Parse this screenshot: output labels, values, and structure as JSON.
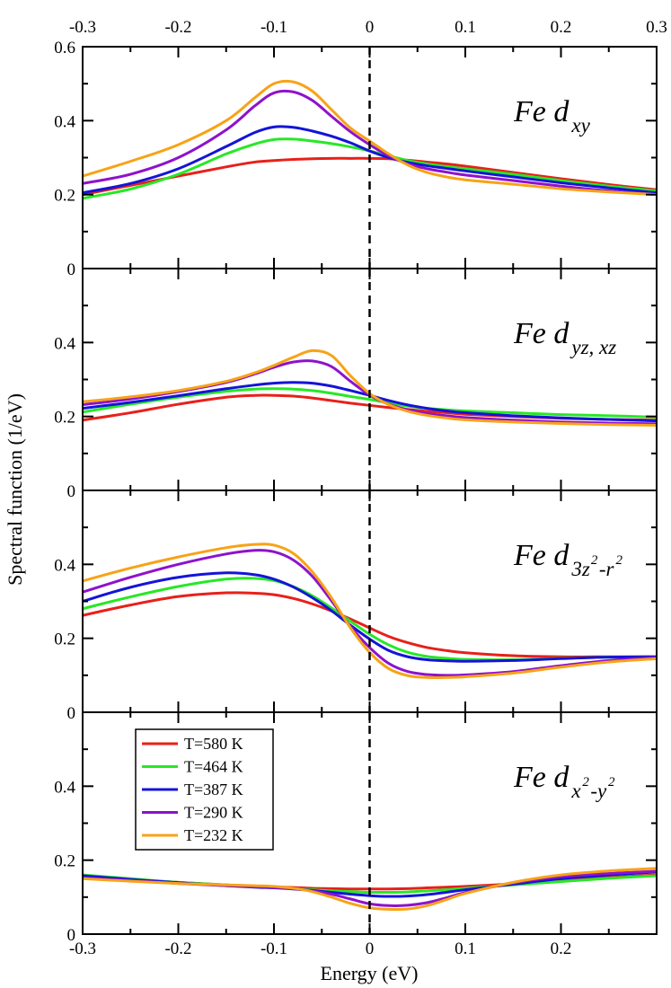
{
  "chart_data": {
    "type": "line",
    "xlabel": "Energy (eV)",
    "ylabel": "Spectral function (1/eV)",
    "xlim": [
      -0.3,
      0.3
    ],
    "ylim": [
      0,
      0.6
    ],
    "x_ticks": [
      "-0.3",
      "-0.2",
      "-0.1",
      "0",
      "0.1",
      "0.2",
      "0.3"
    ],
    "x_ticks_bottom": [
      "-0.3",
      "-0.2",
      "-0.1",
      "0",
      "0.1",
      "0.2"
    ],
    "y_ticks_top_panel": [
      "0",
      "0.2",
      "0.4",
      "0.6"
    ],
    "y_ticks": [
      "0",
      "0.2",
      "0.4"
    ],
    "fermi_level_line": 0,
    "legend": {
      "position": "lower-left of bottom panel",
      "entries": [
        {
          "label": "T=580 K",
          "color": "#e8201a"
        },
        {
          "label": "T=464 K",
          "color": "#26e826"
        },
        {
          "label": "T=387 K",
          "color": "#1414d8"
        },
        {
          "label": "T=290 K",
          "color": "#8e12cc"
        },
        {
          "label": "T=232 K",
          "color": "#f7a316"
        }
      ]
    },
    "x": [
      -0.3,
      -0.25,
      -0.2,
      -0.15,
      -0.12,
      -0.1,
      -0.08,
      -0.06,
      -0.04,
      -0.02,
      0,
      0.02,
      0.04,
      0.06,
      0.08,
      0.1,
      0.15,
      0.2,
      0.25,
      0.3
    ],
    "panels": [
      {
        "label": "Fe d",
        "sub": "xy",
        "series": [
          {
            "name": "T=580 K",
            "values": [
              0.2,
              0.225,
              0.25,
              0.275,
              0.288,
              0.292,
              0.295,
              0.297,
              0.298,
              0.298,
              0.298,
              0.297,
              0.293,
              0.288,
              0.283,
              0.277,
              0.26,
              0.243,
              0.227,
              0.213
            ]
          },
          {
            "name": "T=464 K",
            "values": [
              0.19,
              0.215,
              0.255,
              0.31,
              0.337,
              0.349,
              0.35,
              0.345,
              0.338,
              0.329,
              0.318,
              0.305,
              0.292,
              0.283,
              0.276,
              0.27,
              0.255,
              0.238,
              0.223,
              0.21
            ]
          },
          {
            "name": "T=387 K",
            "values": [
              0.205,
              0.23,
              0.27,
              0.33,
              0.368,
              0.383,
              0.382,
              0.372,
              0.358,
              0.34,
              0.318,
              0.3,
              0.287,
              0.278,
              0.271,
              0.264,
              0.248,
              0.232,
              0.218,
              0.205
            ]
          },
          {
            "name": "T=290 K",
            "values": [
              0.23,
              0.255,
              0.3,
              0.375,
              0.44,
              0.475,
              0.478,
              0.455,
              0.412,
              0.37,
              0.335,
              0.305,
              0.283,
              0.27,
              0.261,
              0.253,
              0.238,
              0.223,
              0.21,
              0.2
            ]
          },
          {
            "name": "T=232 K",
            "values": [
              0.25,
              0.29,
              0.335,
              0.4,
              0.462,
              0.5,
              0.505,
              0.48,
              0.43,
              0.38,
              0.345,
              0.31,
              0.28,
              0.26,
              0.248,
              0.24,
              0.228,
              0.216,
              0.207,
              0.2
            ]
          }
        ]
      },
      {
        "label": "Fe d",
        "sub": "yz, xz",
        "series": [
          {
            "name": "T=580 K",
            "values": [
              0.19,
              0.21,
              0.233,
              0.252,
              0.257,
              0.257,
              0.255,
              0.25,
              0.243,
              0.236,
              0.23,
              0.224,
              0.219,
              0.214,
              0.21,
              0.206,
              0.2,
              0.195,
              0.192,
              0.19
            ]
          },
          {
            "name": "T=464 K",
            "values": [
              0.212,
              0.233,
              0.252,
              0.268,
              0.274,
              0.275,
              0.274,
              0.27,
              0.263,
              0.254,
              0.246,
              0.237,
              0.228,
              0.222,
              0.218,
              0.215,
              0.21,
              0.205,
              0.202,
              0.198
            ]
          },
          {
            "name": "T=387 K",
            "values": [
              0.222,
              0.238,
              0.256,
              0.275,
              0.285,
              0.29,
              0.292,
              0.29,
              0.282,
              0.27,
              0.257,
              0.243,
              0.231,
              0.222,
              0.215,
              0.21,
              0.202,
              0.196,
              0.192,
              0.188
            ]
          },
          {
            "name": "T=290 K",
            "values": [
              0.232,
              0.247,
              0.267,
              0.292,
              0.315,
              0.333,
              0.347,
              0.35,
              0.335,
              0.295,
              0.258,
              0.233,
              0.218,
              0.208,
              0.202,
              0.197,
              0.19,
              0.185,
              0.182,
              0.18
            ]
          },
          {
            "name": "T=232 K",
            "values": [
              0.24,
              0.253,
              0.27,
              0.295,
              0.318,
              0.338,
              0.36,
              0.378,
              0.365,
              0.31,
              0.262,
              0.232,
              0.214,
              0.203,
              0.196,
              0.191,
              0.185,
              0.181,
              0.178,
              0.176
            ]
          }
        ]
      },
      {
        "label": "Fe d",
        "sub": "3z",
        "sub_sup": "2",
        "sub_tail": "-r",
        "sub_tail_sup": "2",
        "series": [
          {
            "name": "T=580 K",
            "values": [
              0.262,
              0.29,
              0.313,
              0.323,
              0.322,
              0.318,
              0.308,
              0.293,
              0.274,
              0.252,
              0.228,
              0.205,
              0.188,
              0.175,
              0.167,
              0.161,
              0.153,
              0.15,
              0.15,
              0.15
            ]
          },
          {
            "name": "T=464 K",
            "values": [
              0.28,
              0.312,
              0.34,
              0.36,
              0.362,
              0.356,
              0.34,
              0.315,
              0.282,
              0.246,
              0.211,
              0.182,
              0.162,
              0.151,
              0.146,
              0.143,
              0.142,
              0.146,
              0.149,
              0.15
            ]
          },
          {
            "name": "T=387 K",
            "values": [
              0.3,
              0.338,
              0.365,
              0.377,
              0.372,
              0.36,
              0.339,
              0.31,
              0.275,
              0.235,
              0.198,
              0.167,
              0.15,
              0.142,
              0.139,
              0.138,
              0.14,
              0.145,
              0.149,
              0.15
            ]
          },
          {
            "name": "T=290 K",
            "values": [
              0.325,
              0.365,
              0.4,
              0.428,
              0.438,
              0.434,
              0.412,
              0.368,
              0.302,
              0.232,
              0.175,
              0.132,
              0.11,
              0.102,
              0.1,
              0.101,
              0.11,
              0.126,
              0.14,
              0.148
            ]
          },
          {
            "name": "T=232 K",
            "values": [
              0.355,
              0.39,
              0.42,
              0.445,
              0.454,
              0.452,
              0.43,
              0.38,
              0.31,
              0.228,
              0.162,
              0.118,
              0.099,
              0.094,
              0.094,
              0.096,
              0.106,
              0.122,
              0.136,
              0.145
            ]
          }
        ]
      },
      {
        "label": "Fe d",
        "sub": "x",
        "sub_sup": "2",
        "sub_tail": "-y",
        "sub_tail_sup": "2",
        "series": [
          {
            "name": "T=580 K",
            "values": [
              0.155,
              0.147,
              0.14,
              0.133,
              0.13,
              0.128,
              0.126,
              0.124,
              0.123,
              0.122,
              0.122,
              0.122,
              0.123,
              0.125,
              0.127,
              0.129,
              0.136,
              0.145,
              0.153,
              0.16
            ]
          },
          {
            "name": "T=464 K",
            "values": [
              0.16,
              0.15,
              0.14,
              0.133,
              0.129,
              0.126,
              0.123,
              0.12,
              0.117,
              0.115,
              0.113,
              0.113,
              0.114,
              0.117,
              0.12,
              0.124,
              0.133,
              0.142,
              0.151,
              0.158
            ]
          },
          {
            "name": "T=387 K",
            "values": [
              0.158,
              0.148,
              0.139,
              0.131,
              0.127,
              0.125,
              0.122,
              0.118,
              0.113,
              0.108,
              0.104,
              0.102,
              0.103,
              0.107,
              0.113,
              0.12,
              0.135,
              0.15,
              0.16,
              0.168
            ]
          },
          {
            "name": "T=290 K",
            "values": [
              0.152,
              0.145,
              0.137,
              0.131,
              0.128,
              0.126,
              0.123,
              0.117,
              0.108,
              0.095,
              0.082,
              0.077,
              0.078,
              0.085,
              0.098,
              0.112,
              0.138,
              0.155,
              0.164,
              0.17
            ]
          },
          {
            "name": "T=232 K",
            "values": [
              0.15,
              0.143,
              0.137,
              0.133,
              0.131,
              0.129,
              0.124,
              0.115,
              0.1,
              0.083,
              0.071,
              0.067,
              0.068,
              0.077,
              0.093,
              0.11,
              0.14,
              0.16,
              0.171,
              0.178
            ]
          }
        ]
      }
    ]
  }
}
